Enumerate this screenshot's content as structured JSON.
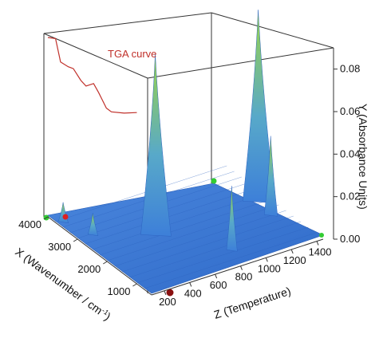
{
  "chart_data": {
    "type": "surface3d",
    "title": "",
    "annotation": "TGA curve",
    "x_axis": {
      "label": "X (Wavenumber / cm",
      "label_sup": "-1",
      "label_end": ")",
      "ticks": [
        "4000",
        "3000",
        "2000",
        "1000"
      ],
      "range": [
        4000,
        500
      ]
    },
    "z_axis": {
      "label": "Z (Temperature)",
      "ticks": [
        "200",
        "400",
        "600",
        "800",
        "1000",
        "1200",
        "1400"
      ],
      "range": [
        100,
        1450
      ]
    },
    "y_axis": {
      "label": "Y (Absorbance Units)",
      "ticks": [
        "0.00",
        "0.02",
        "0.04",
        "0.06",
        "0.08"
      ],
      "range": [
        0,
        0.09
      ]
    },
    "peaks": [
      {
        "wavenumber": 2350,
        "temperature": 560,
        "absorbance": 0.085
      },
      {
        "wavenumber": 2350,
        "temperature": 1370,
        "absorbance": 0.09
      },
      {
        "wavenumber": 1800,
        "temperature": 1340,
        "absorbance": 0.037
      },
      {
        "wavenumber": 1100,
        "temperature": 870,
        "absorbance": 0.03
      },
      {
        "wavenumber": 3000,
        "temperature": 220,
        "absorbance": 0.01
      },
      {
        "wavenumber": 3700,
        "temperature": 150,
        "absorbance": 0.009
      }
    ],
    "tga_curve": {
      "temperature": [
        100,
        160,
        200,
        260,
        300,
        360,
        400,
        460,
        500,
        560,
        600,
        700,
        800
      ],
      "mass_fraction": [
        1.0,
        0.98,
        0.84,
        0.8,
        0.78,
        0.7,
        0.66,
        0.66,
        0.6,
        0.5,
        0.47,
        0.44,
        0.42
      ]
    },
    "colors": {
      "surface_base": "#3a78d6",
      "peak_top": "#8bd04a",
      "tga": "#c0302a",
      "frame": "#333333"
    },
    "grid": false,
    "legend": "none"
  }
}
